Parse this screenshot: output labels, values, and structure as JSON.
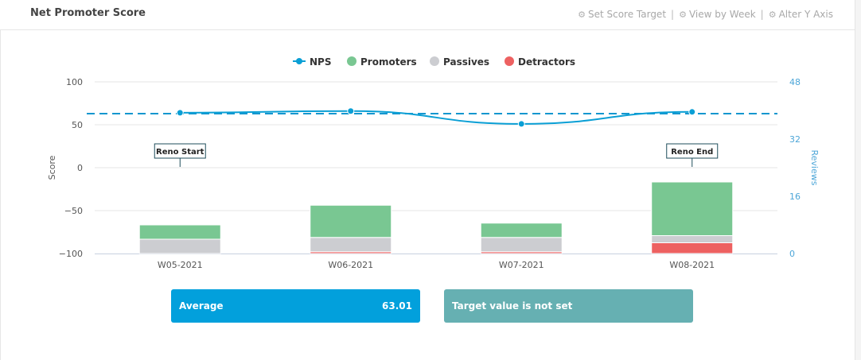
{
  "header": {
    "title": "Net Promoter Score",
    "actions": [
      {
        "label": "Set Score Target",
        "icon": "gear-icon"
      },
      {
        "label": "View by Week",
        "icon": "gear-icon"
      },
      {
        "label": "Alter Y Axis",
        "icon": "gear-icon"
      }
    ]
  },
  "colors": {
    "nps": "#0a9fd5",
    "promoters": "#79c792",
    "passives": "#cccdd1",
    "detractors": "#ed6161",
    "target_line": "#1497cf",
    "average_box": "#02a0dc",
    "target_box": "#66b0b2"
  },
  "chart_data": {
    "type": "bar",
    "categories": [
      "W05-2021",
      "W06-2021",
      "W07-2021",
      "W08-2021"
    ],
    "series": [
      {
        "name": "Promoters",
        "type": "bar",
        "axis": "right",
        "values": [
          4,
          9,
          4,
          15
        ]
      },
      {
        "name": "Passives",
        "type": "bar",
        "axis": "right",
        "values": [
          4,
          4,
          4,
          2
        ]
      },
      {
        "name": "Detractors",
        "type": "bar",
        "axis": "right",
        "values": [
          0,
          0.5,
          0.5,
          3
        ]
      },
      {
        "name": "NPS",
        "type": "line",
        "axis": "left",
        "values": [
          64,
          66,
          51,
          65
        ]
      }
    ],
    "reference_line": {
      "label": "Average",
      "value": 63.01,
      "axis": "left",
      "style": "dashed"
    },
    "annotations": [
      {
        "label": "Reno Start",
        "category": "W05-2021"
      },
      {
        "label": "Reno End",
        "category": "W08-2021"
      }
    ],
    "legend": [
      "NPS",
      "Promoters",
      "Passives",
      "Detractors"
    ],
    "legend_position": "top-center",
    "ylabel": "Score",
    "y2label": "Reviews",
    "ylim": [
      -100,
      100
    ],
    "y2lim": [
      0,
      48
    ],
    "yticks": [
      "100",
      "50",
      "0",
      "−50",
      "−100"
    ],
    "y2ticks": [
      "48",
      "32",
      "16",
      "0"
    ],
    "grid": true
  },
  "summary": {
    "average_label": "Average",
    "average_value": "63.01",
    "target_label": "Target value is not set"
  }
}
